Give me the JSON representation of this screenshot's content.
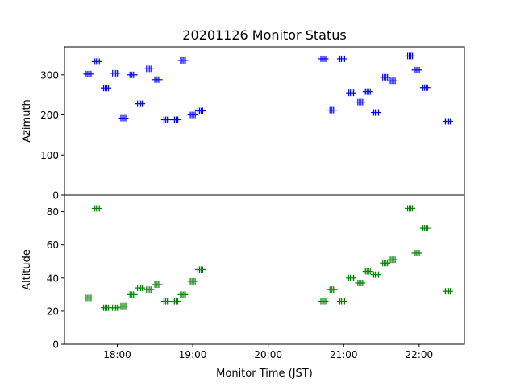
{
  "chart_data": {
    "type": "scatter",
    "title": "20201126 Monitor Status",
    "xlabel": "Monitor Time (JST)",
    "x_ticks": [
      "18:00",
      "19:00",
      "20:00",
      "21:00",
      "22:00"
    ],
    "x_tick_hours": [
      18,
      19,
      20,
      21,
      22
    ],
    "xlim_hours": [
      17.3,
      22.6
    ],
    "panels": [
      {
        "ylabel": "Azimuth",
        "ylim": [
          0,
          370
        ],
        "y_ticks": [
          0,
          100,
          200,
          300
        ],
        "color": "#0000ff",
        "points": [
          {
            "t": 17.62,
            "v": 302
          },
          {
            "t": 17.73,
            "v": 333
          },
          {
            "t": 17.85,
            "v": 267
          },
          {
            "t": 17.97,
            "v": 304
          },
          {
            "t": 18.08,
            "v": 192
          },
          {
            "t": 18.2,
            "v": 300
          },
          {
            "t": 18.3,
            "v": 228
          },
          {
            "t": 18.42,
            "v": 315
          },
          {
            "t": 18.53,
            "v": 288
          },
          {
            "t": 18.65,
            "v": 188
          },
          {
            "t": 18.77,
            "v": 188
          },
          {
            "t": 18.87,
            "v": 336
          },
          {
            "t": 19.0,
            "v": 200
          },
          {
            "t": 19.1,
            "v": 210
          },
          {
            "t": 20.73,
            "v": 340
          },
          {
            "t": 20.85,
            "v": 212
          },
          {
            "t": 20.98,
            "v": 340
          },
          {
            "t": 21.1,
            "v": 255
          },
          {
            "t": 21.22,
            "v": 232
          },
          {
            "t": 21.32,
            "v": 258
          },
          {
            "t": 21.43,
            "v": 206
          },
          {
            "t": 21.55,
            "v": 294
          },
          {
            "t": 21.65,
            "v": 285
          },
          {
            "t": 21.88,
            "v": 347
          },
          {
            "t": 21.97,
            "v": 312
          },
          {
            "t": 22.08,
            "v": 268
          },
          {
            "t": 22.38,
            "v": 184
          }
        ]
      },
      {
        "ylabel": "Altitude",
        "ylim": [
          0,
          90
        ],
        "y_ticks": [
          0,
          20,
          40,
          60,
          80
        ],
        "color": "#008000",
        "points": [
          {
            "t": 17.62,
            "v": 28
          },
          {
            "t": 17.73,
            "v": 82
          },
          {
            "t": 17.85,
            "v": 22
          },
          {
            "t": 17.97,
            "v": 22
          },
          {
            "t": 18.08,
            "v": 23
          },
          {
            "t": 18.2,
            "v": 30
          },
          {
            "t": 18.3,
            "v": 34
          },
          {
            "t": 18.42,
            "v": 33
          },
          {
            "t": 18.53,
            "v": 36
          },
          {
            "t": 18.65,
            "v": 26
          },
          {
            "t": 18.77,
            "v": 26
          },
          {
            "t": 18.87,
            "v": 30
          },
          {
            "t": 19.0,
            "v": 38
          },
          {
            "t": 19.1,
            "v": 45
          },
          {
            "t": 20.73,
            "v": 26
          },
          {
            "t": 20.85,
            "v": 33
          },
          {
            "t": 20.98,
            "v": 26
          },
          {
            "t": 21.1,
            "v": 40
          },
          {
            "t": 21.22,
            "v": 37
          },
          {
            "t": 21.32,
            "v": 44
          },
          {
            "t": 21.43,
            "v": 42
          },
          {
            "t": 21.55,
            "v": 49
          },
          {
            "t": 21.65,
            "v": 51
          },
          {
            "t": 21.88,
            "v": 82
          },
          {
            "t": 21.97,
            "v": 55
          },
          {
            "t": 22.08,
            "v": 70
          },
          {
            "t": 22.38,
            "v": 32
          }
        ]
      }
    ]
  }
}
